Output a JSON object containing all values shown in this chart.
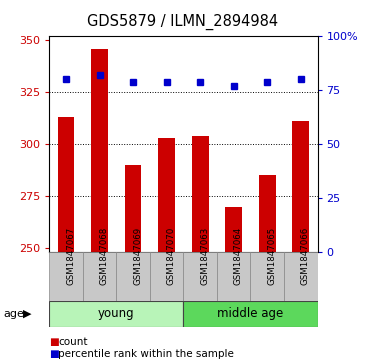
{
  "title": "GDS5879 / ILMN_2894984",
  "samples": [
    "GSM1847067",
    "GSM1847068",
    "GSM1847069",
    "GSM1847070",
    "GSM1847063",
    "GSM1847064",
    "GSM1847065",
    "GSM1847066"
  ],
  "counts": [
    313,
    346,
    290,
    303,
    304,
    270,
    285,
    311
  ],
  "percentiles": [
    80,
    82,
    79,
    79,
    79,
    77,
    79,
    80
  ],
  "groups": [
    {
      "label": "young",
      "start": 0,
      "end": 4
    },
    {
      "label": "middle age",
      "start": 4,
      "end": 8
    }
  ],
  "ylim_left": [
    248,
    352
  ],
  "ylim_right": [
    0,
    100
  ],
  "yticks_left": [
    250,
    275,
    300,
    325,
    350
  ],
  "yticks_right": [
    0,
    25,
    50,
    75,
    100
  ],
  "ytick_labels_right": [
    "0",
    "25",
    "50",
    "75",
    "100%"
  ],
  "bar_color": "#CC0000",
  "dot_color": "#0000CC",
  "bar_width": 0.5,
  "age_label": "age",
  "legend_count_label": "count",
  "legend_pct_label": "percentile rank within the sample",
  "bg_color": "#FFFFFF",
  "sample_box_color": "#C8C8C8",
  "young_color": "#B8F4B8",
  "middle_age_color": "#5CD85C",
  "grid_lines": [
    275,
    300,
    325
  ]
}
